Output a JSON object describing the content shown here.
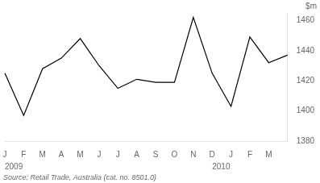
{
  "chart_data": {
    "type": "line",
    "y_label": "$m",
    "source": "Source: Retail Trade, Australia (cat. no. 8501.0)",
    "categories": [
      "J",
      "F",
      "M",
      "A",
      "M",
      "J",
      "J",
      "A",
      "S",
      "O",
      "N",
      "D",
      "J",
      "F",
      "M",
      null
    ],
    "values": [
      1425,
      1397,
      1428,
      1435,
      1448,
      1430,
      1415,
      1421,
      1419,
      1419,
      1462,
      1425,
      1403,
      1449,
      1432,
      1437
    ],
    "color": "#000000",
    "ylim": [
      1380,
      1465
    ],
    "yticks": [
      1380,
      1400,
      1420,
      1440,
      1460
    ],
    "grid": false,
    "annotations": [
      {
        "text": "2009",
        "x": 0
      },
      {
        "text": "2010",
        "x": 11
      }
    ]
  }
}
